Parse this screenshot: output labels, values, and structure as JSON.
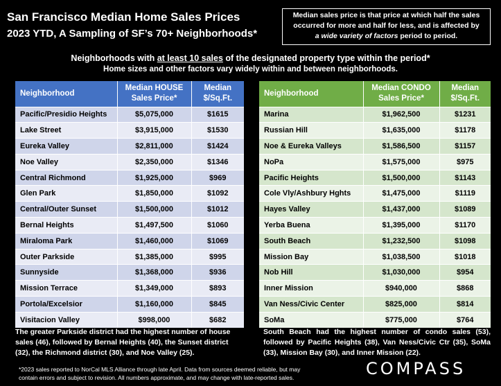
{
  "header": {
    "title": "San Francisco Median Home Sales Prices",
    "subtitle": "2023 YTD, A Sampling of SF’s 70+ Neighborhoods*"
  },
  "note": {
    "line1": "Median sales price is that price at which half the sales",
    "line2": "occurred for more and half for less, and is affected by",
    "line3_em": "a wide variety of factors",
    "line3_rest": " period to period."
  },
  "intro": {
    "pre": "Neighborhoods with ",
    "underlined": "at least 10 sales",
    "post": " of the designated property type within the period*",
    "line2": "Home sizes and other factors vary widely within and between neighborhoods."
  },
  "house_table": {
    "headers": [
      "Neighborhood",
      "Median HOUSE Sales Price*",
      "Median $/Sq.Ft."
    ],
    "rows": [
      [
        "Pacific/Presidio Heights",
        "$5,075,000",
        "$1615"
      ],
      [
        "Lake Street",
        "$3,915,000",
        "$1530"
      ],
      [
        "Eureka Valley",
        "$2,811,000",
        "$1424"
      ],
      [
        "Noe Valley",
        "$2,350,000",
        "$1346"
      ],
      [
        "Central Richmond",
        "$1,925,000",
        "$969"
      ],
      [
        "Glen Park",
        "$1,850,000",
        "$1092"
      ],
      [
        "Central/Outer Sunset",
        "$1,500,000",
        "$1012"
      ],
      [
        "Bernal Heights",
        "$1,497,500",
        "$1060"
      ],
      [
        "Miraloma Park",
        "$1,460,000",
        "$1069"
      ],
      [
        "Outer Parkside",
        "$1,385,000",
        "$995"
      ],
      [
        "Sunnyside",
        "$1,368,000",
        "$936"
      ],
      [
        "Mission Terrace",
        "$1,349,000",
        "$893"
      ],
      [
        "Portola/Excelsior",
        "$1,160,000",
        "$845"
      ],
      [
        "Visitacion Valley",
        "$998,000",
        "$682"
      ]
    ]
  },
  "condo_table": {
    "headers": [
      "Neighborhood",
      "Median CONDO Sales Price*",
      "Median $/Sq.Ft."
    ],
    "rows": [
      [
        "Marina",
        "$1,962,500",
        "$1231"
      ],
      [
        "Russian Hill",
        "$1,635,000",
        "$1178"
      ],
      [
        "Noe & Eureka Valleys",
        "$1,586,500",
        "$1157"
      ],
      [
        "NoPa",
        "$1,575,000",
        "$975"
      ],
      [
        "Pacific Heights",
        "$1,500,000",
        "$1143"
      ],
      [
        "Cole Vly/Ashbury Hghts",
        "$1,475,000",
        "$1119"
      ],
      [
        "Hayes Valley",
        "$1,437,000",
        "$1089"
      ],
      [
        "Yerba Buena",
        "$1,395,000",
        "$1170"
      ],
      [
        "South Beach",
        "$1,232,500",
        "$1098"
      ],
      [
        "Mission Bay",
        "$1,038,500",
        "$1018"
      ],
      [
        "Nob Hill",
        "$1,030,000",
        "$954"
      ],
      [
        "Inner Mission",
        "$940,000",
        "$868"
      ],
      [
        "Van Ness/Civic Center",
        "$825,000",
        "$814"
      ],
      [
        "SoMa",
        "$775,000",
        "$764"
      ]
    ]
  },
  "summary_left": "The greater Parkside district had the highest number of house sales (46), followed by Bernal Heights (40), the Sunset district (32), the Richmond district (30), and Noe Valley (25).",
  "summary_right": "South Beach had the highest number of condo sales (53), followed by Pacific Heights (38), Van Ness/Civic Ctr (35), SoMa (33), Mission Bay (30), and Inner Mission (22).",
  "footnote": {
    "line1": "*2023 sales reported to NorCal MLS Alliance through late April. Data from sources deemed reliable, but may",
    "line2": "contain errors and subject to revision. All numbers approximate, and may change with late-reported sales."
  },
  "logo": "COMPASS",
  "colors": {
    "background": "#000000",
    "house_header": "#4472c4",
    "condo_header": "#70ad47"
  }
}
